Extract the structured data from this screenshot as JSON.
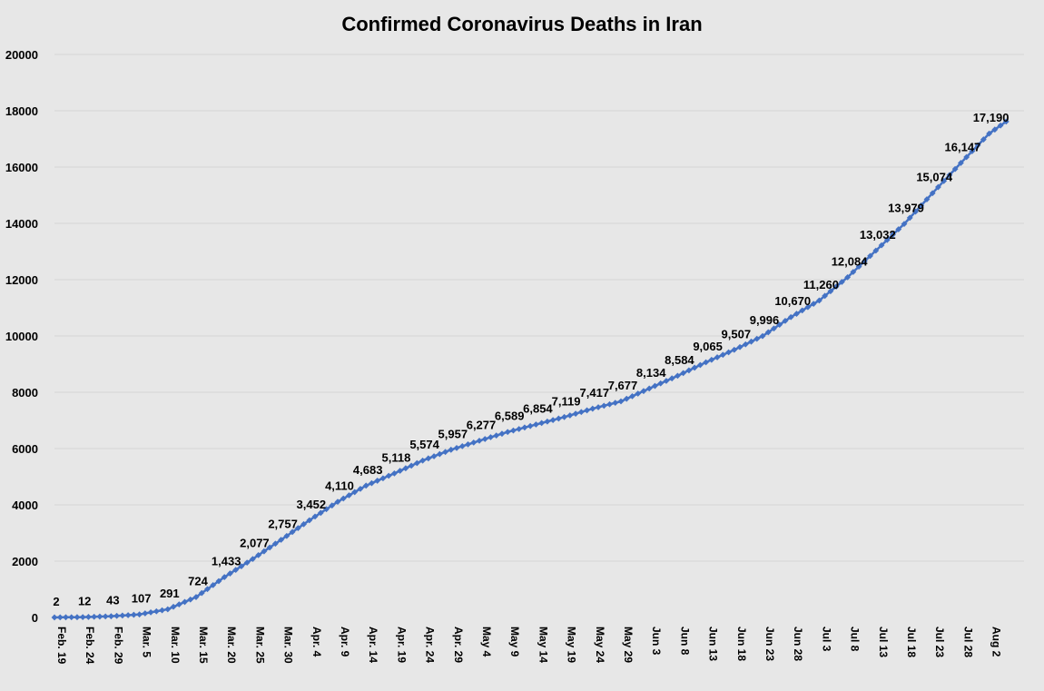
{
  "chart_data": {
    "type": "line",
    "title": "Confirmed Coronavirus Deaths in Iran",
    "xlabel": "",
    "ylabel": "",
    "ylim": [
      0,
      20000
    ],
    "yticks": [
      0,
      2000,
      4000,
      6000,
      8000,
      10000,
      12000,
      14000,
      16000,
      18000,
      20000
    ],
    "grid": true,
    "legend": "none",
    "colors": {
      "line": "#4472c4",
      "background": "#e7e7e7",
      "grid": "#d4d4d4"
    },
    "x_tick_labels": [
      "Feb. 19",
      "Feb. 24",
      "Feb. 29",
      "Mar. 5",
      "Mar. 10",
      "Mar. 15",
      "Mar. 20",
      "Mar. 25",
      "Mar. 30",
      "Apr. 4",
      "Apr. 9",
      "Apr. 14",
      "Apr. 19",
      "Apr. 24",
      "Apr. 29",
      "May 4",
      "May 9",
      "May 14",
      "May 19",
      "May 24",
      "May 29",
      "Jun 3",
      "Jun 8",
      "Jun 13",
      "Jun 18",
      "Jun 23",
      "Jun 28",
      "Jul 3",
      "Jul 8",
      "Jul 13",
      "Jul 18",
      "Jul 23",
      "Jul 28",
      "Aug 2"
    ],
    "series": [
      {
        "values": [
          2,
          12,
          43,
          107,
          291,
          724,
          1433,
          2077,
          2757,
          3452,
          4110,
          4683,
          5118,
          5574,
          5957,
          6277,
          6589,
          6854,
          7119,
          7417,
          7677,
          8134,
          8584,
          9065,
          9507,
          9996,
          10670,
          11260,
          12084,
          13032,
          13979,
          15074,
          16147,
          17190
        ],
        "value_labels": [
          "2",
          "12",
          "43",
          "107",
          "291",
          "724",
          "1,433",
          "2,077",
          "2,757",
          "3,452",
          "4,110",
          "4,683",
          "5,118",
          "5,574",
          "5,957",
          "6,277",
          "6,589",
          "6,854",
          "7,119",
          "7,417",
          "7,677",
          "8,134",
          "8,584",
          "9,065",
          "9,507",
          "9,996",
          "10,670",
          "11,260",
          "12,084",
          "13,032",
          "13,979",
          "15,074",
          "16,147",
          "17,190"
        ],
        "end_value": 17617
      }
    ]
  }
}
